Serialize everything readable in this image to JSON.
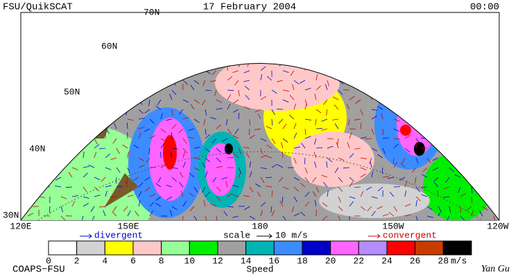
{
  "header": {
    "left": "FSU/QuikSCAT",
    "center": "17 February 2004",
    "right": "00:00"
  },
  "map": {
    "lat_labels": [
      "70N",
      "60N",
      "50N",
      "40N",
      "30N"
    ],
    "lon_labels": [
      "120E",
      "150E",
      "180",
      "150W",
      "120W"
    ]
  },
  "legend": {
    "divergent": "divergent",
    "scale": "scale",
    "scale_value": "10 m/s",
    "convergent": "convergent"
  },
  "colorbar": {
    "bounds": [
      0,
      2,
      4,
      6,
      8,
      10,
      12,
      14,
      16,
      18,
      20,
      22,
      24,
      26,
      28
    ],
    "colors": [
      "#ffffff",
      "#d2d2d2",
      "#ffff00",
      "#ffc8c8",
      "#96ff96",
      "#00ee00",
      "#a0a0a0",
      "#00b4b4",
      "#3c8cff",
      "#0000c8",
      "#ff64ff",
      "#b48cff",
      "#ff0000",
      "#c83c00",
      "#000000"
    ],
    "unit": "m/s",
    "label": "Speed"
  },
  "footer": {
    "left": "COAPS−FSU",
    "right": "Yan Gu"
  }
}
